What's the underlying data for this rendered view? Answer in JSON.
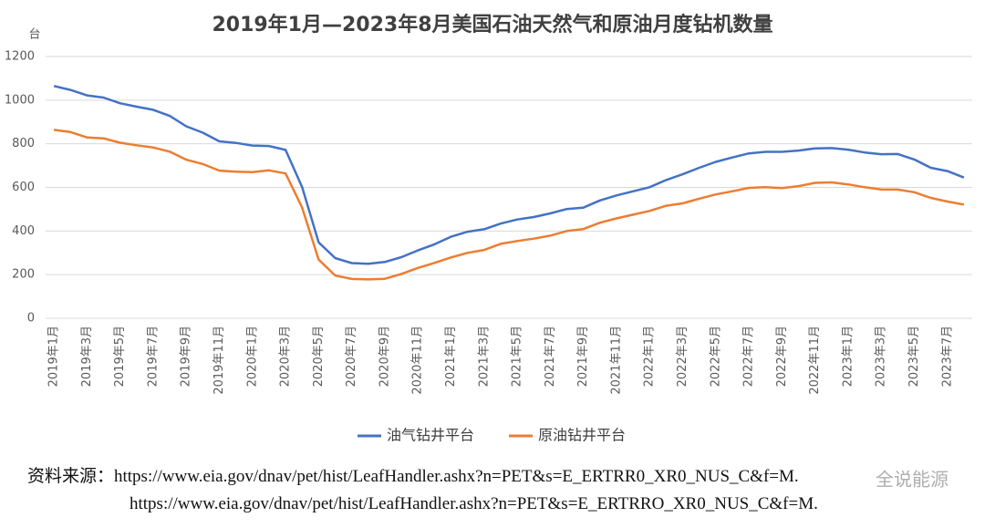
{
  "chart_data": {
    "type": "line",
    "title": "2019年1月—2023年8月美国石油天然气和原油月度钻机数量",
    "y_unit": "台",
    "categories": [
      "2019年1月",
      null,
      "2019年3月",
      null,
      "2019年5月",
      null,
      "2019年7月",
      null,
      "2019年9月",
      null,
      "2019年11月",
      null,
      "2020年1月",
      null,
      "2020年3月",
      null,
      "2020年5月",
      null,
      "2020年7月",
      null,
      "2020年9月",
      null,
      "2020年11月",
      null,
      "2021年1月",
      null,
      "2021年3月",
      null,
      "2021年5月",
      null,
      "2021年7月",
      null,
      "2021年9月",
      null,
      "2021年11月",
      null,
      "2022年1月",
      null,
      "2022年3月",
      null,
      "2022年5月",
      null,
      "2022年7月",
      null,
      "2022年9月",
      null,
      "2022年11月",
      null,
      "2023年1月",
      null,
      "2023年3月",
      null,
      "2023年5月",
      null,
      "2023年7月",
      null
    ],
    "series": [
      {
        "name": "油气钻井平台",
        "color": "#4472c4",
        "values": [
          1065,
          1047,
          1022,
          1012,
          986,
          970,
          956,
          928,
          880,
          851,
          811,
          804,
          792,
          790,
          772,
          602,
          348,
          276,
          253,
          250,
          258,
          280,
          311,
          339,
          374,
          397,
          408,
          434,
          453,
          464,
          481,
          501,
          507,
          540,
          563,
          582,
          601,
          634,
          660,
          690,
          717,
          737,
          756,
          763,
          763,
          769,
          779,
          780,
          773,
          760,
          752,
          753,
          728,
          690,
          675,
          645
        ]
      },
      {
        "name": "原油钻井平台",
        "color": "#ed7d31",
        "values": [
          864,
          854,
          829,
          825,
          805,
          793,
          783,
          764,
          727,
          707,
          677,
          672,
          670,
          678,
          664,
          508,
          269,
          196,
          180,
          178,
          181,
          203,
          231,
          254,
          279,
          300,
          313,
          341,
          354,
          365,
          379,
          400,
          409,
          438,
          458,
          475,
          492,
          516,
          527,
          548,
          568,
          582,
          598,
          601,
          597,
          606,
          621,
          623,
          614,
          601,
          591,
          590,
          578,
          552,
          535,
          521
        ]
      }
    ],
    "ylim": [
      0,
      1200
    ],
    "yticks": [
      0,
      200,
      400,
      600,
      800,
      1000,
      1200
    ],
    "grid": true,
    "legend": "bottom",
    "source": [
      "资料来源：https://www.eia.gov/dnav/pet/hist/LeafHandler.ashx?n=PET&s=E_ERTRR0_XR0_NUS_C&f=M.",
      "https://www.eia.gov/dnav/pet/hist/LeafHandler.ashx?n=PET&s=E_ERTRRO_XR0_NUS_C&f=M."
    ],
    "watermark": "全说能源"
  }
}
